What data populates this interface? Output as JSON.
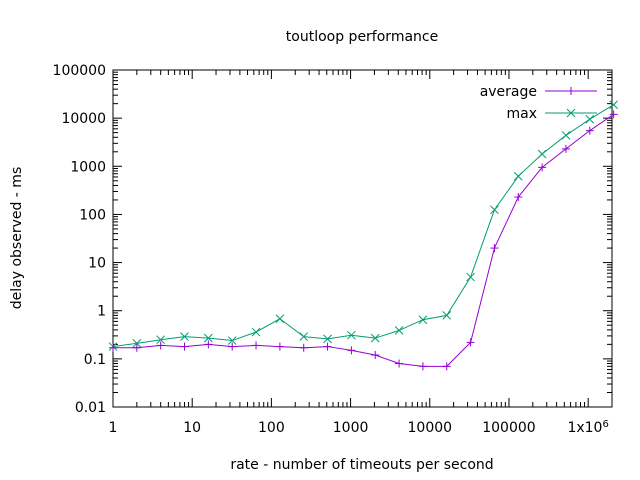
{
  "chart_data": {
    "type": "line",
    "title": "toutloop performance",
    "xlabel": "rate - number of timeouts per second",
    "ylabel": "delay observed - ms",
    "xscale": "log",
    "yscale": "log",
    "xlim": [
      1,
      2000000
    ],
    "ylim": [
      0.01,
      100000
    ],
    "grid": false,
    "legend_position": "top-right",
    "x_ticks": [
      {
        "value": 1,
        "label": "1"
      },
      {
        "value": 10,
        "label": "10"
      },
      {
        "value": 100,
        "label": "100"
      },
      {
        "value": 1000,
        "label": "1000"
      },
      {
        "value": 10000,
        "label": "10000"
      },
      {
        "value": 100000,
        "label": "100000"
      },
      {
        "value": 1000000,
        "label": "1x10",
        "sup": "6"
      }
    ],
    "y_ticks": [
      {
        "value": 0.01,
        "label": "0.01"
      },
      {
        "value": 0.1,
        "label": "0.1"
      },
      {
        "value": 1,
        "label": "1"
      },
      {
        "value": 10,
        "label": "10"
      },
      {
        "value": 100,
        "label": "100"
      },
      {
        "value": 1000,
        "label": "1000"
      },
      {
        "value": 10000,
        "label": "10000"
      },
      {
        "value": 100000,
        "label": "100000"
      }
    ],
    "series": [
      {
        "name": "average",
        "color": "#9400d3",
        "marker": "plus",
        "x": [
          1,
          2,
          4,
          8,
          16,
          32,
          64,
          128,
          256,
          512,
          1024,
          2048,
          4096,
          8192,
          16384,
          32768,
          65536,
          131072,
          262144,
          524288,
          1048576,
          2097152
        ],
        "y": [
          0.17,
          0.17,
          0.19,
          0.18,
          0.2,
          0.18,
          0.19,
          0.18,
          0.17,
          0.18,
          0.15,
          0.12,
          0.08,
          0.07,
          0.07,
          0.22,
          20,
          230,
          950,
          2300,
          5500,
          12000
        ]
      },
      {
        "name": "max",
        "color": "#009e73",
        "marker": "cross",
        "x": [
          1,
          2,
          4,
          8,
          16,
          32,
          64,
          128,
          256,
          512,
          1024,
          2048,
          4096,
          8192,
          16384,
          32768,
          65536,
          131072,
          262144,
          524288,
          1048576,
          2097152
        ],
        "y": [
          0.18,
          0.21,
          0.25,
          0.29,
          0.27,
          0.24,
          0.36,
          0.68,
          0.29,
          0.26,
          0.31,
          0.27,
          0.39,
          0.65,
          0.8,
          5,
          125,
          620,
          1800,
          4400,
          9500,
          19000
        ]
      }
    ]
  }
}
